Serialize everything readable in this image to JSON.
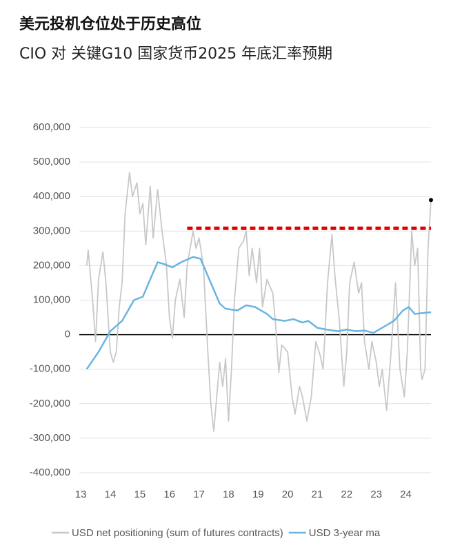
{
  "chart_data": {
    "type": "line",
    "title": "美元投机仓位处于历史高位",
    "subtitle": "CIO 对 关键G10 国家货币2025 年底汇率预期",
    "xlim": [
      12.95,
      24.85
    ],
    "xticks": [
      13,
      14,
      15,
      16,
      17,
      18,
      19,
      20,
      21,
      22,
      23,
      24
    ],
    "ylim": [
      -400000,
      600000
    ],
    "yticks": [
      {
        "value": 600000,
        "label": "600,000"
      },
      {
        "value": 500000,
        "label": "500,000"
      },
      {
        "value": 400000,
        "label": "400,000"
      },
      {
        "value": 300000,
        "label": "300,000"
      },
      {
        "value": 200000,
        "label": "200,000"
      },
      {
        "value": 100000,
        "label": "100,000"
      },
      {
        "value": 0,
        "label": "0"
      },
      {
        "value": -100000,
        "label": "-100,000"
      },
      {
        "value": -200000,
        "label": "-200,000"
      },
      {
        "value": -300000,
        "label": "-300,000"
      },
      {
        "value": -400000,
        "label": "-400,000"
      }
    ],
    "grid": true,
    "zero_line": true,
    "mark_last_point": true,
    "reference_line": {
      "value": 308000,
      "x": [
        16.6,
        24.85
      ],
      "color": "#e00000"
    },
    "series": [
      {
        "name": "USD net positioning (sum of futures contracts)",
        "color": "#c8c8c8",
        "x": [
          13.2,
          13.25,
          13.4,
          13.5,
          13.6,
          13.75,
          13.85,
          14.0,
          14.1,
          14.2,
          14.3,
          14.4,
          14.5,
          14.65,
          14.75,
          14.9,
          15.0,
          15.1,
          15.2,
          15.35,
          15.45,
          15.6,
          15.75,
          15.9,
          16.0,
          16.1,
          16.2,
          16.35,
          16.5,
          16.6,
          16.8,
          16.9,
          17.0,
          17.15,
          17.3,
          17.4,
          17.5,
          17.6,
          17.7,
          17.8,
          17.9,
          18.0,
          18.1,
          18.2,
          18.35,
          18.5,
          18.6,
          18.7,
          18.8,
          18.95,
          19.05,
          19.15,
          19.3,
          19.5,
          19.6,
          19.7,
          19.8,
          20.0,
          20.15,
          20.25,
          20.4,
          20.5,
          20.65,
          20.8,
          20.95,
          21.1,
          21.2,
          21.35,
          21.5,
          21.6,
          21.75,
          21.9,
          22.0,
          22.1,
          22.25,
          22.4,
          22.5,
          22.6,
          22.75,
          22.85,
          22.95,
          23.0,
          23.1,
          23.2,
          23.35,
          23.5,
          23.65,
          23.8,
          23.95,
          24.05,
          24.2,
          24.3,
          24.4,
          24.5,
          24.55,
          24.65,
          24.75,
          24.85
        ],
        "values": [
          200000,
          245000,
          100000,
          -20000,
          160000,
          240000,
          150000,
          -50000,
          -80000,
          -50000,
          80000,
          150000,
          350000,
          470000,
          400000,
          440000,
          350000,
          380000,
          260000,
          430000,
          280000,
          420000,
          300000,
          200000,
          50000,
          -10000,
          100000,
          160000,
          50000,
          200000,
          300000,
          250000,
          280000,
          200000,
          -50000,
          -200000,
          -280000,
          -180000,
          -80000,
          -150000,
          -70000,
          -250000,
          -100000,
          100000,
          250000,
          270000,
          300000,
          170000,
          250000,
          150000,
          250000,
          80000,
          160000,
          120000,
          20000,
          -110000,
          -30000,
          -50000,
          -180000,
          -230000,
          -150000,
          -180000,
          -250000,
          -180000,
          -20000,
          -60000,
          -100000,
          150000,
          290000,
          170000,
          40000,
          -150000,
          -50000,
          150000,
          210000,
          120000,
          150000,
          -20000,
          -100000,
          -20000,
          -60000,
          -80000,
          -150000,
          -100000,
          -220000,
          -50000,
          150000,
          -100000,
          -180000,
          -50000,
          300000,
          200000,
          250000,
          -100000,
          -130000,
          -100000,
          250000,
          390000
        ]
      },
      {
        "name": "USD 3-year ma",
        "color": "#6ab4e0",
        "x": [
          13.2,
          13.6,
          14.0,
          14.4,
          14.8,
          15.1,
          15.4,
          15.6,
          15.8,
          16.1,
          16.4,
          16.8,
          17.05,
          17.4,
          17.7,
          17.9,
          18.3,
          18.6,
          18.9,
          19.3,
          19.5,
          19.9,
          20.2,
          20.5,
          20.7,
          21.0,
          21.3,
          21.7,
          22.0,
          22.3,
          22.6,
          22.9,
          23.2,
          23.6,
          23.9,
          24.1,
          24.3,
          24.85
        ],
        "values": [
          -100000,
          -50000,
          10000,
          40000,
          100000,
          110000,
          170000,
          210000,
          205000,
          195000,
          210000,
          225000,
          220000,
          150000,
          90000,
          75000,
          70000,
          85000,
          80000,
          60000,
          45000,
          40000,
          45000,
          35000,
          40000,
          20000,
          15000,
          10000,
          15000,
          10000,
          12000,
          5000,
          20000,
          40000,
          70000,
          80000,
          60000,
          65000
        ]
      }
    ]
  }
}
